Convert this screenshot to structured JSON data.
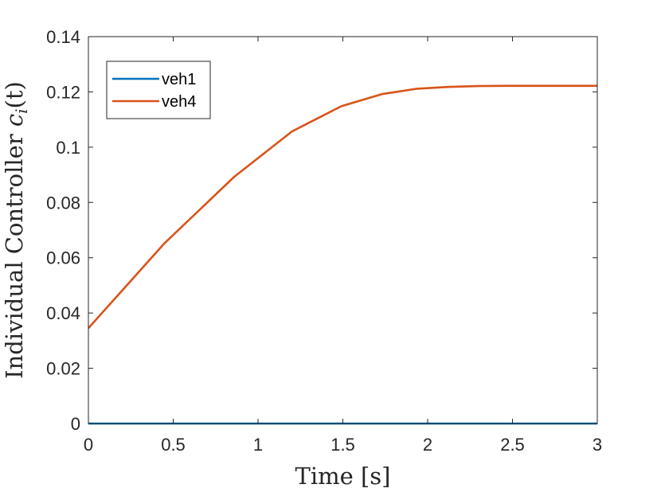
{
  "chart_data": {
    "type": "line",
    "xlabel": "Time [s]",
    "ylabel": "Individual Controller c_i(t)",
    "ylabel_parts": {
      "prefix": "Individual Controller ",
      "c": "c",
      "sub": "i",
      "arg": "(t)"
    },
    "xlim": [
      0,
      3
    ],
    "ylim": [
      0,
      0.14
    ],
    "xticks": [
      0,
      0.5,
      1,
      1.5,
      2,
      2.5,
      3
    ],
    "xtick_labels": [
      "0",
      "0.5",
      "1",
      "1.5",
      "2",
      "2.5",
      "3"
    ],
    "yticks": [
      0,
      0.02,
      0.04,
      0.06,
      0.08,
      0.1,
      0.12,
      0.14
    ],
    "ytick_labels": [
      "0",
      "0.02",
      "0.04",
      "0.06",
      "0.08",
      "0.1",
      "0.12",
      "0.14"
    ],
    "grid": false,
    "legend_position": "top-left",
    "series": [
      {
        "name": "veh1",
        "color": "#0072BD",
        "x": [
          0,
          3
        ],
        "y": [
          0,
          0
        ]
      },
      {
        "name": "veh4",
        "color": "#D95319",
        "x": [
          0,
          0.45,
          0.86,
          1.2,
          1.49,
          1.73,
          1.93,
          2.12,
          2.3,
          2.5,
          2.75,
          3
        ],
        "y": [
          0.0345,
          0.0653,
          0.0893,
          0.1057,
          0.1148,
          0.1192,
          0.1211,
          0.1218,
          0.1221,
          0.1222,
          0.1222,
          0.1222
        ]
      }
    ]
  }
}
